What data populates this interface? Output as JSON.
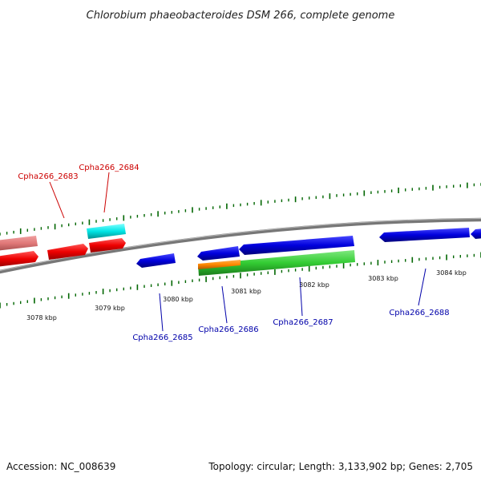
{
  "title": "Chlorobium phaeobacteroides DSM 266, complete genome",
  "footer": {
    "accession": "Accession: NC_008639",
    "summary": "Topology: circular; Length: 3,133,902 bp; Genes: 2,705"
  },
  "scale_labels": [
    "3078 kbp",
    "3079 kbp",
    "3080 kbp",
    "3081 kbp",
    "3082 kbp",
    "3083 kbp",
    "3084 kbp"
  ],
  "gene_labels": {
    "g2683": "Cpha266_2683",
    "g2684": "Cpha266_2684",
    "g2685": "Cpha266_2685",
    "g2686": "Cpha266_2686",
    "g2687": "Cpha266_2687",
    "g2688": "Cpha266_2688"
  },
  "colors": {
    "forward_strand_label": "#cc0000",
    "reverse_strand_label": "#0000aa",
    "red_gene": "#ee0000",
    "pink_gene": "#e58080",
    "cyan_gene": "#00e5e5",
    "blue_gene": "#0000dd",
    "green_gene": "#33cc33",
    "orange_gene": "#ff8800",
    "tick_green": "#006600",
    "backbone": "#777777"
  }
}
